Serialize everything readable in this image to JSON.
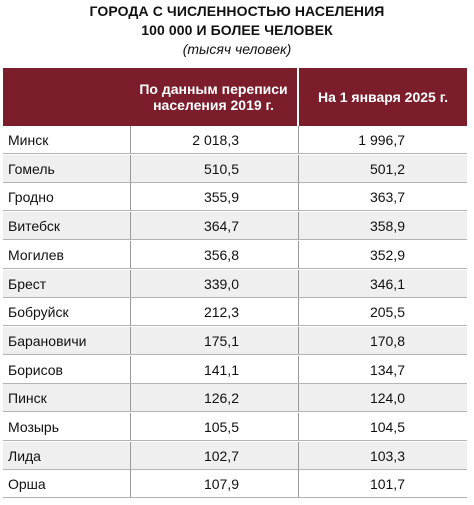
{
  "title": {
    "line1": "ГОРОДА С ЧИСЛЕННОСТЬЮ НАСЕЛЕНИЯ",
    "line2": "100 000 И БОЛЕЕ ЧЕЛОВЕК",
    "units": "(тысяч человек)"
  },
  "table": {
    "headers": {
      "census": "По данным переписи населения 2019 г.",
      "current": "На 1 января 2025 г."
    },
    "header_color": "#7c1d2c",
    "rows": [
      {
        "city": "Минск",
        "census_2019": "2 018,3",
        "jan_2025": "1 996,7"
      },
      {
        "city": "Гомель",
        "census_2019": "510,5",
        "jan_2025": "501,2"
      },
      {
        "city": "Гродно",
        "census_2019": "355,9",
        "jan_2025": "363,7"
      },
      {
        "city": "Витебск",
        "census_2019": "364,7",
        "jan_2025": "358,9"
      },
      {
        "city": "Могилев",
        "census_2019": "356,8",
        "jan_2025": "352,9"
      },
      {
        "city": "Брест",
        "census_2019": "339,0",
        "jan_2025": "346,1"
      },
      {
        "city": "Бобруйск",
        "census_2019": "212,3",
        "jan_2025": "205,5"
      },
      {
        "city": "Барановичи",
        "census_2019": "175,1",
        "jan_2025": "170,8"
      },
      {
        "city": "Борисов",
        "census_2019": "141,1",
        "jan_2025": "134,7"
      },
      {
        "city": "Пинск",
        "census_2019": "126,2",
        "jan_2025": "124,0"
      },
      {
        "city": "Мозырь",
        "census_2019": "105,5",
        "jan_2025": "104,5"
      },
      {
        "city": "Лида",
        "census_2019": "102,7",
        "jan_2025": "103,3"
      },
      {
        "city": "Орша",
        "census_2019": "107,9",
        "jan_2025": "101,7"
      }
    ]
  }
}
